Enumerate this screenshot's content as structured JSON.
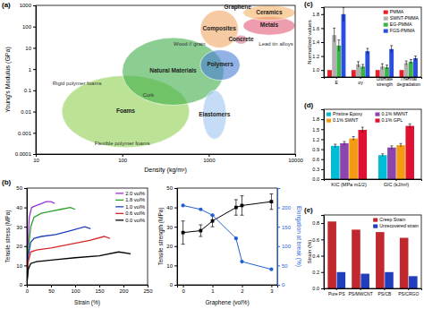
{
  "chart_data": [
    {
      "type": "region",
      "title": "(a)",
      "x_label": "Density (kg/m³)",
      "y_label": "Young's Modulus (GPa)",
      "log": true,
      "xlim": [
        10,
        10000
      ],
      "ylim": [
        0.0001,
        1000
      ],
      "xticks": [
        10,
        100,
        1000,
        10000
      ],
      "yticks": [
        0.0001,
        0.001,
        0.01,
        0.1,
        1,
        10,
        100,
        1000
      ],
      "regions": [
        {
          "label": "Foams",
          "color": "#8fd14f",
          "x": [
            20,
            600
          ],
          "y": [
            0.0002,
            0.5
          ]
        },
        {
          "label": "Natural Materials",
          "color": "#3fae49",
          "x": [
            100,
            1500
          ],
          "y": [
            0.02,
            30
          ]
        },
        {
          "label": "Elastomers",
          "color": "#9fc5f0",
          "x": [
            850,
            1600
          ],
          "y": [
            0.0005,
            0.1
          ]
        },
        {
          "label": "Polymers",
          "color": "#4a7fd6",
          "x": [
            800,
            2300
          ],
          "y": [
            0.3,
            8
          ]
        },
        {
          "label": "Composites",
          "color": "#f0a868",
          "x": [
            800,
            2200
          ],
          "y": [
            10,
            600
          ]
        },
        {
          "label": "Concrete",
          "color": "#d9708a",
          "x": [
            2000,
            2800
          ],
          "y": [
            15,
            40
          ]
        },
        {
          "label": "Metals",
          "color": "#e35b7a",
          "x": [
            2500,
            10000
          ],
          "y": [
            40,
            300
          ]
        },
        {
          "label": "Ceramics",
          "color": "#f5b062",
          "x": [
            2500,
            10000
          ],
          "y": [
            200,
            1000
          ]
        },
        {
          "label": "Graphene",
          "color": "#9e9e9e",
          "x": [
            1800,
            2600
          ],
          "y": [
            700,
            1200
          ]
        }
      ],
      "annotations": [
        {
          "text": "Rigid polymer foams",
          "x": 30,
          "y": 0.2
        },
        {
          "text": "Flexible polymer foams",
          "x": 100,
          "y": 0.0003
        },
        {
          "text": "Cork",
          "x": 200,
          "y": 0.06
        },
        {
          "text": "Wood // grain",
          "x": 600,
          "y": 15
        },
        {
          "text": "Lead tin alloys",
          "x": 6000,
          "y": 15
        }
      ]
    },
    {
      "type": "line",
      "title": "(b)",
      "x_label": "Strain (%)",
      "y_label": "Tensile stress (MPa)",
      "xlim": [
        0,
        250
      ],
      "ylim": [
        0,
        50
      ],
      "xticks": [
        0,
        50,
        100,
        150,
        200,
        250
      ],
      "yticks": [
        0,
        10,
        20,
        30,
        40,
        50
      ],
      "legend": "top-right",
      "series": [
        {
          "name": "2.0 vol%",
          "color": "#9b30d9",
          "x": [
            0,
            2,
            5,
            10,
            20,
            30,
            40,
            50,
            58
          ],
          "values": [
            0,
            20,
            35,
            40,
            41,
            42,
            43,
            43,
            42
          ]
        },
        {
          "name": "1.8 vol%",
          "color": "#2ca02c",
          "x": [
            0,
            3,
            8,
            15,
            30,
            50,
            70,
            90,
            100
          ],
          "values": [
            0,
            18,
            30,
            35,
            37,
            38,
            39,
            40,
            39
          ]
        },
        {
          "name": "1.0 vol%",
          "color": "#1f3fbf",
          "x": [
            0,
            3,
            8,
            15,
            30,
            60,
            90,
            120,
            132
          ],
          "values": [
            0,
            15,
            22,
            24,
            25,
            26,
            28,
            30,
            29
          ]
        },
        {
          "name": "0.6 vol%",
          "color": "#d62728",
          "x": [
            0,
            3,
            8,
            20,
            50,
            90,
            130,
            160,
            172
          ],
          "values": [
            0,
            12,
            17,
            18,
            19,
            21,
            23,
            25,
            24
          ]
        },
        {
          "name": "0.0 vol%",
          "color": "#000000",
          "x": [
            0,
            3,
            8,
            20,
            60,
            100,
            150,
            190,
            215
          ],
          "values": [
            0,
            8,
            11,
            12,
            13,
            14,
            15,
            17,
            16
          ]
        }
      ]
    },
    {
      "type": "line",
      "x_label": "Graphene (vol%)",
      "y_label": "Tensile strength (MPa)",
      "y2_label": "Elongation at break (%)",
      "xlim": [
        -0.2,
        3.2
      ],
      "ylim": [
        0,
        50
      ],
      "y2lim": [
        0,
        250
      ],
      "xticks": [
        0,
        1,
        2,
        3
      ],
      "yticks": [
        0,
        10,
        20,
        30,
        40,
        50
      ],
      "y2ticks": [
        0,
        50,
        100,
        150,
        200
      ],
      "series": [
        {
          "color": "#000000",
          "marker": "square",
          "x": [
            0,
            0.6,
            1,
            1.8,
            2,
            3
          ],
          "values": [
            27,
            28,
            33,
            40,
            41,
            43
          ],
          "errors": [
            6,
            3,
            3,
            4,
            5,
            4
          ]
        },
        {
          "color": "#1f5fd0",
          "marker": "circle",
          "axis": "y2",
          "x": [
            0,
            0.6,
            1,
            1.8,
            2,
            3
          ],
          "values": [
            205,
            195,
            180,
            120,
            60,
            40
          ]
        }
      ]
    },
    {
      "type": "bar",
      "title": "(c)",
      "y_label": "Normalized values",
      "categories": [
        "E",
        "σy",
        "Ultimate strength",
        "Thermal degradation"
      ],
      "ylim": [
        0.9,
        1.9
      ],
      "yticks": [
        {
          "value": 1,
          "label": "1.0"
        },
        1.2,
        1.4,
        1.6,
        1.8
      ],
      "legend": "top-right",
      "series": [
        {
          "name": "PMMA",
          "color": "#e8202a",
          "values": [
            1,
            1,
            1,
            1
          ]
        },
        {
          "name": "SWNT-PMMA",
          "color": "#b0b0b0",
          "values": [
            1.5,
            1.08,
            1.05,
            1.1
          ],
          "errors": [
            0.1,
            0.04,
            0.04,
            0.03
          ]
        },
        {
          "name": "EG-PMMA",
          "color": "#3cb44b",
          "values": [
            1.35,
            1.05,
            1.04,
            1.12
          ],
          "errors": [
            0.08,
            0.03,
            0.03,
            0.03
          ]
        },
        {
          "name": "FGS-PMMA",
          "color": "#2a4fe0",
          "values": [
            1.8,
            1.27,
            1.3,
            1.17
          ],
          "errors": [
            0.1,
            0.04,
            0.05,
            0.03
          ]
        }
      ]
    },
    {
      "type": "bar",
      "title": "(d)",
      "categories": [
        "KIC (MPa m1/2)",
        "GIC (kJ/m²)"
      ],
      "ylim": [
        0,
        2.1
      ],
      "yticks": [
        {
          "value": 0,
          "label": "0.0"
        },
        0.3,
        0.6,
        0.9,
        1.2,
        1.5,
        1.8
      ],
      "legend": "top",
      "series": [
        {
          "name": "Pristine Epoxy",
          "color": "#00bcd4",
          "values": [
            1.0,
            0.72
          ],
          "errors": [
            0.05,
            0.04
          ]
        },
        {
          "name": "0.1% MWNT",
          "color": "#8e44ad",
          "values": [
            1.08,
            0.95
          ],
          "errors": [
            0.05,
            0.05
          ]
        },
        {
          "name": "0.1% SWNT",
          "color": "#f39c12",
          "values": [
            1.22,
            1.02
          ],
          "errors": [
            0.06,
            0.05
          ]
        },
        {
          "name": "0.1% GPL",
          "color": "#e01030",
          "values": [
            1.48,
            1.6
          ],
          "errors": [
            0.08,
            0.06
          ]
        }
      ]
    },
    {
      "type": "bar",
      "title": "(e)",
      "y_label": "Strain (%)",
      "categories": [
        "Pure PS",
        "PS/MWCNT",
        "PS/CB",
        "PS/CRGO"
      ],
      "ylim": [
        0,
        0.9
      ],
      "yticks": [
        {
          "value": 0,
          "label": "0.0"
        },
        0.2,
        0.4,
        0.6,
        0.8
      ],
      "legend": "top-right",
      "series": [
        {
          "name": "Creep Strain",
          "color": "#c0282d",
          "values": [
            0.82,
            0.72,
            0.69,
            0.62
          ]
        },
        {
          "name": "Unrecovered strain",
          "color": "#1f3fbf",
          "values": [
            0.2,
            0.18,
            0.2,
            0.15
          ]
        }
      ]
    }
  ]
}
